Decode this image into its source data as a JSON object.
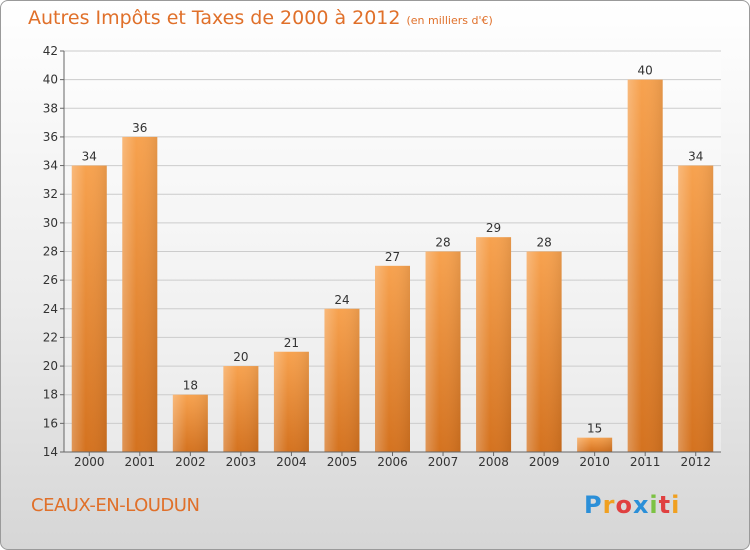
{
  "title": "Autres Impôts et Taxes de 2000 à 2012",
  "subtitle": "(en milliers d'€)",
  "location": "CEAUX-EN-LOUDUN",
  "logo_text": "Proxiti",
  "colors": {
    "bar": "#f08a2e",
    "bar_light": "#f6a55a",
    "title": "#e0702a"
  },
  "chart_data": {
    "type": "bar",
    "title": "Autres Impôts et Taxes de 2000 à 2012",
    "subtitle": "(en milliers d'€)",
    "categories": [
      "2000",
      "2001",
      "2002",
      "2003",
      "2004",
      "2005",
      "2006",
      "2007",
      "2008",
      "2009",
      "2010",
      "2011",
      "2012"
    ],
    "values": [
      34,
      36,
      18,
      20,
      21,
      24,
      27,
      28,
      29,
      28,
      15,
      40,
      34
    ],
    "ylim": [
      14,
      42
    ],
    "yticks": [
      14,
      16,
      18,
      20,
      22,
      24,
      26,
      28,
      30,
      32,
      34,
      36,
      38,
      40,
      42
    ],
    "grid": true
  }
}
